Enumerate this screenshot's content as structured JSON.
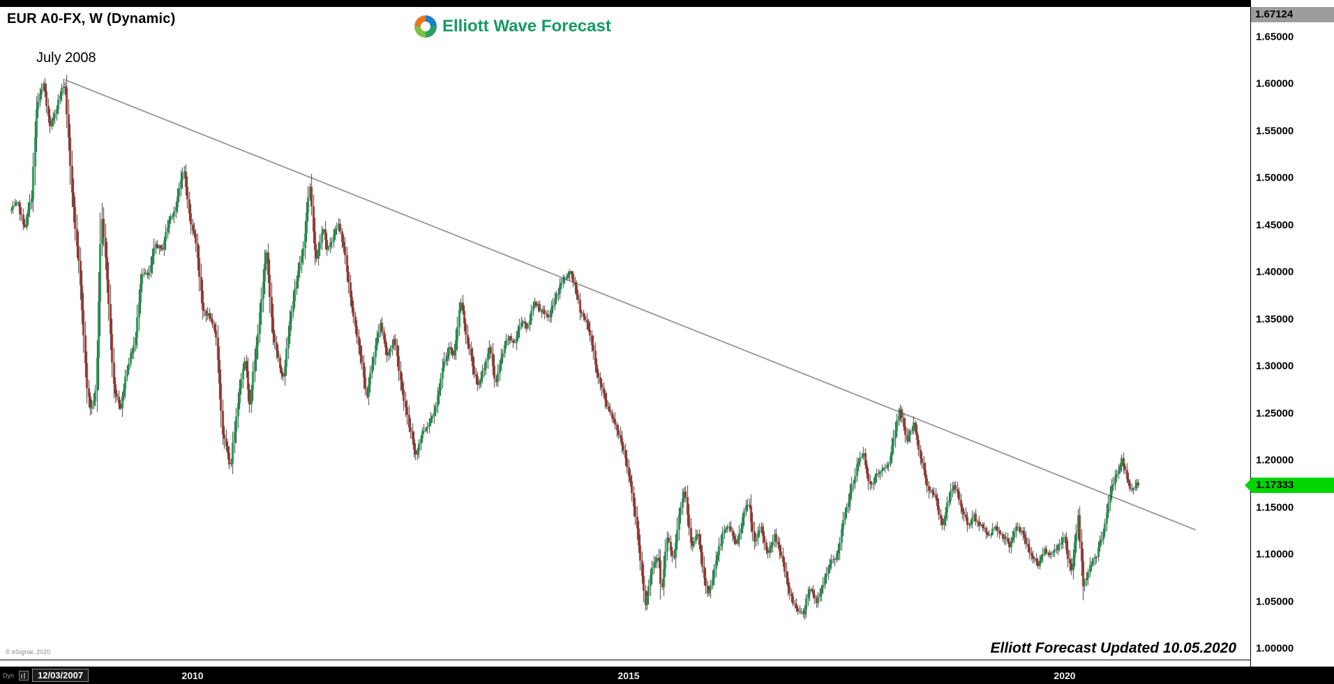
{
  "window": {
    "title": "EUR A0-FX, W (Dynamic)",
    "copyright": "© eSignal, 2020"
  },
  "branding": {
    "logo_text": "Elliott Wave Forecast",
    "logo_color": "#169b62",
    "logo_icon": "elliott-wave-swirl-icon"
  },
  "annotations": {
    "peak_label": "July 2008",
    "footer_note": "Elliott Forecast Updated 10.05.2020"
  },
  "price_axis": {
    "top_value": "1.67124",
    "last_price_label": "1.17333",
    "last_price": 1.17333,
    "tag_color": "#00d500",
    "ticks": [
      {
        "label": "1.65000",
        "value": 1.65
      },
      {
        "label": "1.60000",
        "value": 1.6
      },
      {
        "label": "1.55000",
        "value": 1.55
      },
      {
        "label": "1.50000",
        "value": 1.5
      },
      {
        "label": "1.45000",
        "value": 1.45
      },
      {
        "label": "1.40000",
        "value": 1.4
      },
      {
        "label": "1.35000",
        "value": 1.35
      },
      {
        "label": "1.30000",
        "value": 1.3
      },
      {
        "label": "1.25000",
        "value": 1.25
      },
      {
        "label": "1.20000",
        "value": 1.2
      },
      {
        "label": "1.15000",
        "value": 1.15
      },
      {
        "label": "1.10000",
        "value": 1.1
      },
      {
        "label": "1.05000",
        "value": 1.05
      },
      {
        "label": "1.00000",
        "value": 1.0
      }
    ]
  },
  "time_axis": {
    "mode_label": "Dyn",
    "start_date": "12/03/2007",
    "ticks": [
      {
        "label": "2010",
        "t": 2010
      },
      {
        "label": "2015",
        "t": 2015
      },
      {
        "label": "2020",
        "t": 2020
      }
    ]
  },
  "chart_data": {
    "type": "candlestick",
    "symbol": "EUR A0-FX",
    "interval": "W",
    "title": "EUR A0-FX, W (Dynamic)",
    "x_range_years": [
      2007.92,
      2021.55
    ],
    "y_range_visible": [
      0.993,
      1.682
    ],
    "grid": false,
    "up_color": "#1a9c50",
    "down_color": "#9d362c",
    "wick_color": "#3d3d3d",
    "last_price": 1.17333,
    "trendline": {
      "from": {
        "t": 2008.54,
        "p": 1.604
      },
      "to": {
        "t": 2021.5,
        "p": 1.126
      }
    },
    "anchors": [
      [
        2007.92,
        1.465
      ],
      [
        2008.0,
        1.472
      ],
      [
        2008.08,
        1.448
      ],
      [
        2008.16,
        1.48
      ],
      [
        2008.22,
        1.575
      ],
      [
        2008.3,
        1.601
      ],
      [
        2008.37,
        1.552
      ],
      [
        2008.45,
        1.576
      ],
      [
        2008.54,
        1.604
      ],
      [
        2008.62,
        1.488
      ],
      [
        2008.7,
        1.408
      ],
      [
        2008.8,
        1.272
      ],
      [
        2008.84,
        1.253
      ],
      [
        2008.9,
        1.275
      ],
      [
        2008.96,
        1.465
      ],
      [
        2009.03,
        1.39
      ],
      [
        2009.1,
        1.28
      ],
      [
        2009.18,
        1.256
      ],
      [
        2009.26,
        1.3
      ],
      [
        2009.35,
        1.327
      ],
      [
        2009.42,
        1.4
      ],
      [
        2009.5,
        1.395
      ],
      [
        2009.58,
        1.43
      ],
      [
        2009.65,
        1.422
      ],
      [
        2009.74,
        1.456
      ],
      [
        2009.82,
        1.47
      ],
      [
        2009.9,
        1.513
      ],
      [
        2009.97,
        1.46
      ],
      [
        2010.05,
        1.43
      ],
      [
        2010.12,
        1.36
      ],
      [
        2010.2,
        1.352
      ],
      [
        2010.28,
        1.33
      ],
      [
        2010.35,
        1.23
      ],
      [
        2010.44,
        1.192
      ],
      [
        2010.52,
        1.26
      ],
      [
        2010.6,
        1.31
      ],
      [
        2010.66,
        1.262
      ],
      [
        2010.75,
        1.33
      ],
      [
        2010.85,
        1.424
      ],
      [
        2010.92,
        1.34
      ],
      [
        2011.0,
        1.3
      ],
      [
        2011.05,
        1.29
      ],
      [
        2011.14,
        1.36
      ],
      [
        2011.22,
        1.4
      ],
      [
        2011.28,
        1.43
      ],
      [
        2011.35,
        1.494
      ],
      [
        2011.42,
        1.41
      ],
      [
        2011.5,
        1.45
      ],
      [
        2011.55,
        1.42
      ],
      [
        2011.62,
        1.44
      ],
      [
        2011.68,
        1.45
      ],
      [
        2011.75,
        1.42
      ],
      [
        2011.82,
        1.37
      ],
      [
        2011.88,
        1.34
      ],
      [
        2011.95,
        1.3
      ],
      [
        2012.0,
        1.266
      ],
      [
        2012.08,
        1.31
      ],
      [
        2012.16,
        1.347
      ],
      [
        2012.24,
        1.31
      ],
      [
        2012.32,
        1.33
      ],
      [
        2012.4,
        1.28
      ],
      [
        2012.48,
        1.24
      ],
      [
        2012.56,
        1.205
      ],
      [
        2012.64,
        1.23
      ],
      [
        2012.72,
        1.24
      ],
      [
        2012.8,
        1.26
      ],
      [
        2012.88,
        1.3
      ],
      [
        2012.95,
        1.32
      ],
      [
        2013.0,
        1.31
      ],
      [
        2013.08,
        1.37
      ],
      [
        2013.15,
        1.33
      ],
      [
        2013.22,
        1.3
      ],
      [
        2013.28,
        1.277
      ],
      [
        2013.35,
        1.3
      ],
      [
        2013.42,
        1.32
      ],
      [
        2013.48,
        1.28
      ],
      [
        2013.55,
        1.31
      ],
      [
        2013.62,
        1.33
      ],
      [
        2013.7,
        1.325
      ],
      [
        2013.78,
        1.35
      ],
      [
        2013.85,
        1.34
      ],
      [
        2013.92,
        1.37
      ],
      [
        2014.0,
        1.36
      ],
      [
        2014.08,
        1.35
      ],
      [
        2014.16,
        1.37
      ],
      [
        2014.24,
        1.39
      ],
      [
        2014.35,
        1.399
      ],
      [
        2014.45,
        1.36
      ],
      [
        2014.55,
        1.34
      ],
      [
        2014.65,
        1.29
      ],
      [
        2014.75,
        1.26
      ],
      [
        2014.85,
        1.24
      ],
      [
        2014.95,
        1.21
      ],
      [
        2015.02,
        1.18
      ],
      [
        2015.1,
        1.13
      ],
      [
        2015.2,
        1.046
      ],
      [
        2015.28,
        1.09
      ],
      [
        2015.35,
        1.1
      ],
      [
        2015.38,
        1.055
      ],
      [
        2015.45,
        1.12
      ],
      [
        2015.52,
        1.09
      ],
      [
        2015.58,
        1.14
      ],
      [
        2015.65,
        1.168
      ],
      [
        2015.72,
        1.11
      ],
      [
        2015.8,
        1.12
      ],
      [
        2015.88,
        1.07
      ],
      [
        2015.92,
        1.057
      ],
      [
        2016.0,
        1.09
      ],
      [
        2016.08,
        1.12
      ],
      [
        2016.16,
        1.13
      ],
      [
        2016.24,
        1.11
      ],
      [
        2016.32,
        1.14
      ],
      [
        2016.38,
        1.157
      ],
      [
        2016.45,
        1.11
      ],
      [
        2016.52,
        1.13
      ],
      [
        2016.6,
        1.1
      ],
      [
        2016.68,
        1.12
      ],
      [
        2016.76,
        1.1
      ],
      [
        2016.84,
        1.06
      ],
      [
        2016.92,
        1.045
      ],
      [
        2017.0,
        1.035
      ],
      [
        2017.08,
        1.065
      ],
      [
        2017.16,
        1.05
      ],
      [
        2017.24,
        1.07
      ],
      [
        2017.32,
        1.09
      ],
      [
        2017.4,
        1.1
      ],
      [
        2017.48,
        1.14
      ],
      [
        2017.56,
        1.17
      ],
      [
        2017.64,
        1.2
      ],
      [
        2017.7,
        1.205
      ],
      [
        2017.78,
        1.17
      ],
      [
        2017.86,
        1.185
      ],
      [
        2017.94,
        1.19
      ],
      [
        2018.0,
        1.2
      ],
      [
        2018.06,
        1.23
      ],
      [
        2018.12,
        1.255
      ],
      [
        2018.2,
        1.22
      ],
      [
        2018.28,
        1.24
      ],
      [
        2018.36,
        1.2
      ],
      [
        2018.44,
        1.17
      ],
      [
        2018.52,
        1.16
      ],
      [
        2018.6,
        1.13
      ],
      [
        2018.68,
        1.16
      ],
      [
        2018.74,
        1.175
      ],
      [
        2018.82,
        1.15
      ],
      [
        2018.9,
        1.13
      ],
      [
        2018.97,
        1.14
      ],
      [
        2019.05,
        1.13
      ],
      [
        2019.13,
        1.12
      ],
      [
        2019.21,
        1.13
      ],
      [
        2019.29,
        1.12
      ],
      [
        2019.37,
        1.11
      ],
      [
        2019.45,
        1.13
      ],
      [
        2019.53,
        1.12
      ],
      [
        2019.61,
        1.1
      ],
      [
        2019.7,
        1.09
      ],
      [
        2019.78,
        1.105
      ],
      [
        2019.86,
        1.1
      ],
      [
        2019.94,
        1.11
      ],
      [
        2020.0,
        1.12
      ],
      [
        2020.08,
        1.08
      ],
      [
        2020.16,
        1.14
      ],
      [
        2020.22,
        1.065
      ],
      [
        2020.3,
        1.09
      ],
      [
        2020.38,
        1.1
      ],
      [
        2020.46,
        1.13
      ],
      [
        2020.54,
        1.17
      ],
      [
        2020.6,
        1.185
      ],
      [
        2020.66,
        1.2
      ],
      [
        2020.72,
        1.18
      ],
      [
        2020.78,
        1.165
      ],
      [
        2020.83,
        1.178
      ],
      [
        2020.86,
        1.17333
      ]
    ]
  }
}
